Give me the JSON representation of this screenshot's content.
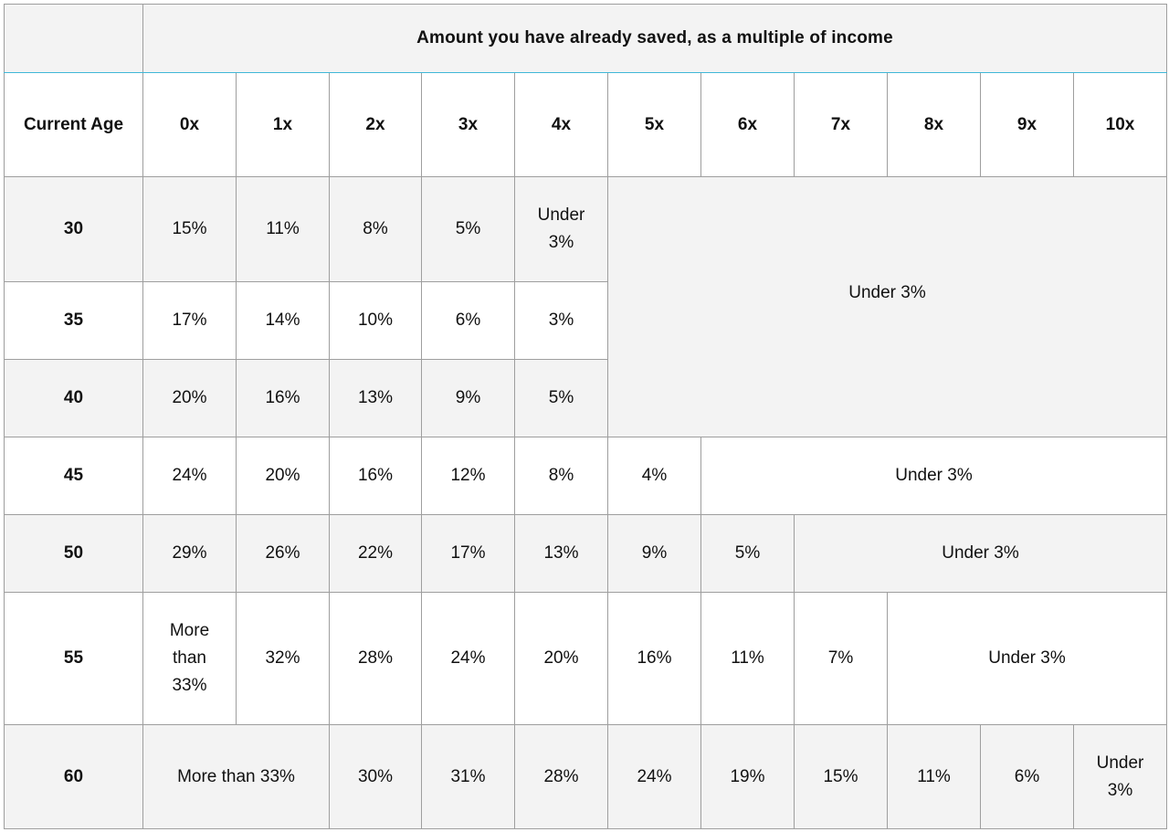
{
  "table": {
    "title": "Amount you have already saved, as a multiple of income",
    "age_header": "Current Age",
    "columns": [
      "0x",
      "1x",
      "2x",
      "3x",
      "4x",
      "5x",
      "6x",
      "7x",
      "8x",
      "9x",
      "10x"
    ],
    "rows": [
      {
        "age": "30",
        "values": [
          "15%",
          "11%",
          "8%",
          "5%",
          "Under 3%"
        ],
        "remainder": "Under 3%"
      },
      {
        "age": "35",
        "values": [
          "17%",
          "14%",
          "10%",
          "6%",
          "3%"
        ]
      },
      {
        "age": "40",
        "values": [
          "20%",
          "16%",
          "13%",
          "9%",
          "5%"
        ]
      },
      {
        "age": "45",
        "values": [
          "24%",
          "20%",
          "16%",
          "12%",
          "8%",
          "4%"
        ],
        "remainder": "Under 3%"
      },
      {
        "age": "50",
        "values": [
          "29%",
          "26%",
          "22%",
          "17%",
          "13%",
          "9%",
          "5%"
        ],
        "remainder": "Under 3%"
      },
      {
        "age": "55",
        "values": [
          "More than 33%",
          "32%",
          "28%",
          "24%",
          "20%",
          "16%",
          "11%",
          "7%"
        ],
        "remainder": "Under 3%"
      },
      {
        "age": "60",
        "values": [
          "More than 33%",
          "30%",
          "31%",
          "28%",
          "24%",
          "19%",
          "15%",
          "11%",
          "6%",
          "Under 3%"
        ]
      }
    ]
  }
}
